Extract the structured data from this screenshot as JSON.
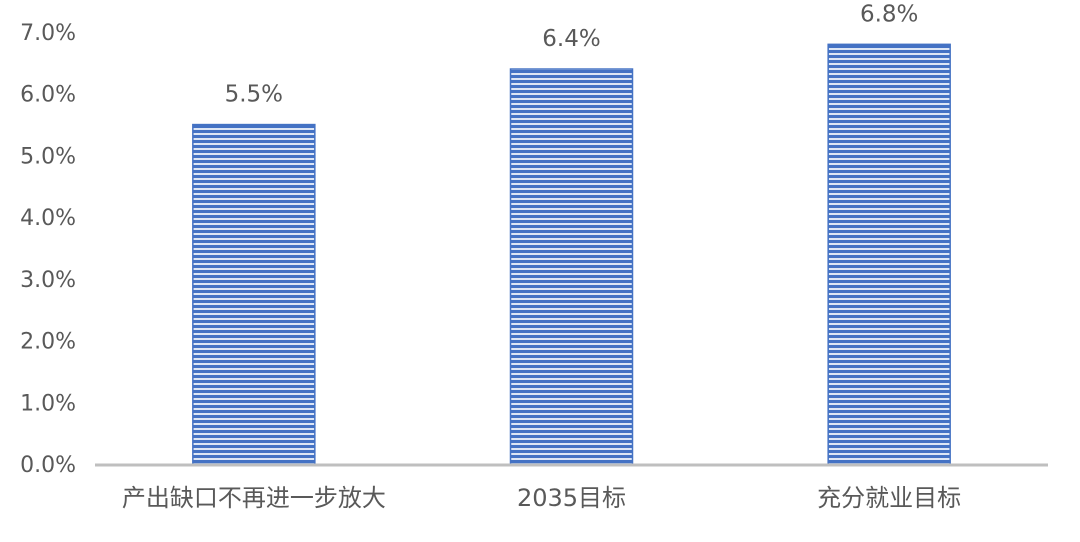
{
  "chart_data": {
    "type": "bar",
    "categories": [
      "产出缺口不再进一步放大",
      "2035目标",
      "充分就业目标"
    ],
    "values": [
      5.5,
      6.4,
      6.8
    ],
    "data_labels": [
      "5.5%",
      "6.4%",
      "6.8%"
    ],
    "ylim": [
      0,
      7
    ],
    "y_ticks": [
      "0.0%",
      "1.0%",
      "2.0%",
      "3.0%",
      "4.0%",
      "5.0%",
      "6.0%",
      "7.0%"
    ],
    "y_tick_values": [
      0,
      1,
      2,
      3,
      4,
      5,
      6,
      7
    ],
    "title": "",
    "xlabel": "",
    "ylabel": "",
    "grid": false,
    "legend": "none",
    "bar_pattern": "horizontal-stripes",
    "colors": {
      "bar_stripe": "#4472C4",
      "bar_gap": "#DDE6F5",
      "bar_edge": "#4472C4",
      "axis": "#BFBFBF",
      "text": "#595959"
    }
  }
}
